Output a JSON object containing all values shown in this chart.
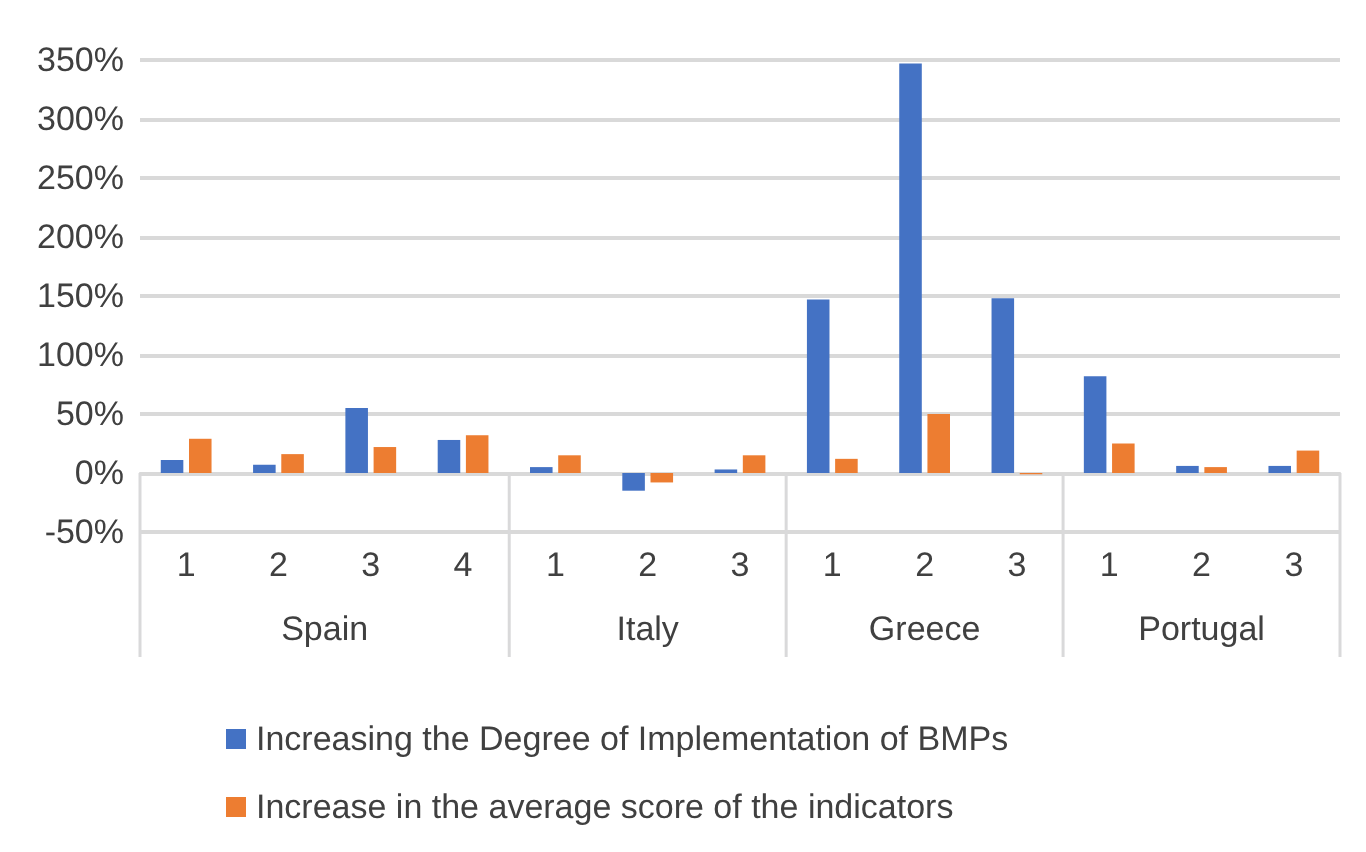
{
  "chart_data": {
    "type": "bar",
    "categories": [
      "1",
      "2",
      "3",
      "4",
      "1",
      "2",
      "3",
      "1",
      "2",
      "3",
      "1",
      "2",
      "3"
    ],
    "series": [
      {
        "name": "Increasing the Degree of Implementation of BMPs",
        "color": "#4472c4",
        "values": [
          11,
          7,
          55,
          28,
          5,
          -15,
          3,
          147,
          347,
          148,
          82,
          6,
          6
        ]
      },
      {
        "name": "Increase in the average score of the indicators",
        "color": "#ed7d31",
        "values": [
          29,
          16,
          22,
          32,
          15,
          -8,
          15,
          12,
          50,
          -1,
          25,
          5,
          19
        ]
      }
    ],
    "ylim": [
      -50,
      350
    ],
    "yticks": [
      {
        "value": -50,
        "label": "-50%"
      },
      {
        "value": 0,
        "label": "0%"
      },
      {
        "value": 50,
        "label": "50%"
      },
      {
        "value": 100,
        "label": "100%"
      },
      {
        "value": 150,
        "label": "150%"
      },
      {
        "value": 200,
        "label": "200%"
      },
      {
        "value": 250,
        "label": "250%"
      },
      {
        "value": 300,
        "label": "300%"
      },
      {
        "value": 350,
        "label": "350%"
      }
    ],
    "annotations": [
      "Spain",
      "Italy",
      "Greece",
      "Portugal"
    ],
    "grid": "y",
    "legend": "bottom"
  }
}
